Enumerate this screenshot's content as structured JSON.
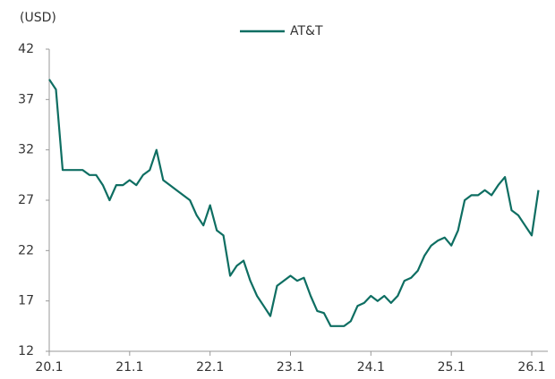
{
  "chart_data": {
    "type": "line",
    "y_label": "(USD)",
    "categories": [
      "20.1",
      null,
      null,
      null,
      null,
      null,
      null,
      null,
      null,
      null,
      null,
      null,
      "21.1",
      null,
      null,
      null,
      null,
      null,
      null,
      null,
      null,
      null,
      null,
      null,
      "22.1",
      null,
      null,
      null,
      null,
      null,
      null,
      null,
      null,
      null,
      null,
      null,
      "23.1",
      null,
      null,
      null,
      null,
      null,
      null,
      null,
      null,
      null,
      null,
      null,
      "24.1",
      null,
      null,
      null,
      null,
      null,
      null,
      null,
      null,
      null,
      null,
      null,
      "25.1",
      null,
      null,
      null,
      null,
      null,
      null,
      null,
      null,
      null,
      null,
      null,
      "26.1",
      null
    ],
    "series": [
      {
        "name": "AT&T",
        "color": "#0e6e62",
        "values": [
          39,
          38,
          30,
          30,
          30,
          30,
          29.5,
          29.5,
          28.5,
          27,
          28.5,
          28.5,
          29,
          28.5,
          29.5,
          30,
          32,
          29,
          28.5,
          28,
          27.5,
          27,
          25.5,
          24.5,
          26.5,
          24,
          23.5,
          19.5,
          20.5,
          21,
          19,
          17.5,
          16.5,
          15.5,
          18.5,
          19,
          19.5,
          19,
          19.3,
          17.5,
          16,
          15.8,
          14.5,
          14.5,
          14.5,
          15,
          16.5,
          16.8,
          17.5,
          17,
          17.5,
          16.8,
          17.5,
          19,
          19.3,
          20,
          21.5,
          22.5,
          23,
          23.3,
          22.5,
          24,
          27,
          27.5,
          27.5,
          28,
          27.5,
          28.5,
          29.3,
          26,
          25.5,
          24.5,
          23.5,
          28
        ]
      }
    ],
    "ylim": [
      12,
      42
    ],
    "yticks": [
      12,
      17,
      22,
      27,
      32,
      37,
      42
    ],
    "legend": "top",
    "grid": false
  }
}
